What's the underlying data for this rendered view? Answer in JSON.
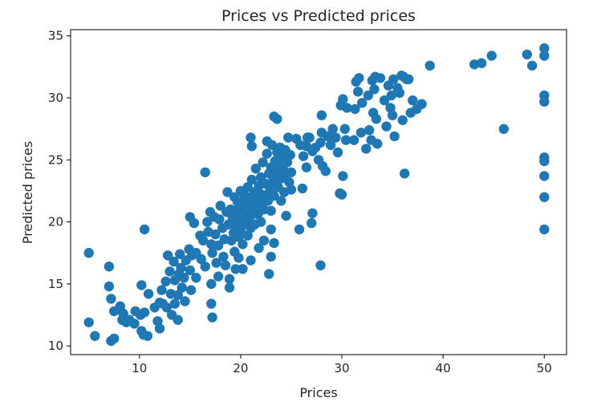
{
  "chart_data": {
    "type": "scatter",
    "title": "Prices vs Predicted prices",
    "xlabel": "Prices",
    "ylabel": "Predicted prices",
    "xlim": [
      3.2,
      52.2
    ],
    "ylim": [
      9.3,
      35.5
    ],
    "xticks": [
      10,
      20,
      30,
      40,
      50
    ],
    "yticks": [
      10,
      15,
      20,
      25,
      30,
      35
    ],
    "grid": false,
    "marker_color": "#1f77b4",
    "points": [
      [
        5.0,
        17.5
      ],
      [
        5.0,
        11.9
      ],
      [
        5.6,
        10.8
      ],
      [
        7.0,
        16.4
      ],
      [
        7.0,
        14.8
      ],
      [
        7.2,
        13.8
      ],
      [
        7.2,
        10.4
      ],
      [
        7.5,
        10.6
      ],
      [
        7.5,
        12.8
      ],
      [
        8.1,
        13.2
      ],
      [
        8.3,
        12.1
      ],
      [
        8.4,
        12.6
      ],
      [
        8.7,
        11.9
      ],
      [
        9.0,
        12.1
      ],
      [
        9.5,
        11.8
      ],
      [
        9.6,
        12.8
      ],
      [
        10.1,
        12.5
      ],
      [
        10.2,
        11.2
      ],
      [
        10.4,
        10.9
      ],
      [
        10.5,
        12.7
      ],
      [
        10.8,
        10.8
      ],
      [
        10.2,
        14.9
      ],
      [
        10.9,
        14.2
      ],
      [
        10.5,
        19.4
      ],
      [
        11.5,
        13.1
      ],
      [
        11.8,
        12.0
      ],
      [
        12.0,
        13.5
      ],
      [
        12.2,
        14.5
      ],
      [
        12.0,
        11.4
      ],
      [
        12.3,
        13.4
      ],
      [
        12.6,
        15.2
      ],
      [
        12.7,
        13.1
      ],
      [
        12.8,
        17.3
      ],
      [
        13.0,
        16.0
      ],
      [
        13.1,
        14.2
      ],
      [
        13.2,
        12.5
      ],
      [
        13.4,
        16.8
      ],
      [
        13.5,
        15.3
      ],
      [
        13.5,
        13.4
      ],
      [
        13.8,
        14.1
      ],
      [
        13.8,
        12.1
      ],
      [
        13.9,
        15.8
      ],
      [
        14.0,
        17.4
      ],
      [
        14.1,
        16.3
      ],
      [
        14.2,
        14.7
      ],
      [
        14.4,
        15.5
      ],
      [
        14.5,
        13.6
      ],
      [
        14.6,
        16.9
      ],
      [
        14.9,
        17.8
      ],
      [
        15.0,
        16.1
      ],
      [
        15.1,
        14.5
      ],
      [
        15.2,
        17.3
      ],
      [
        15.0,
        20.4
      ],
      [
        15.4,
        19.9
      ],
      [
        15.6,
        17.5
      ],
      [
        15.6,
        15.5
      ],
      [
        16.0,
        18.9
      ],
      [
        16.1,
        17.0
      ],
      [
        16.3,
        18.5
      ],
      [
        16.5,
        16.4
      ],
      [
        16.5,
        24.0
      ],
      [
        16.7,
        20.0
      ],
      [
        16.8,
        19.2
      ],
      [
        17.0,
        20.8
      ],
      [
        17.1,
        18.2
      ],
      [
        17.2,
        17.5
      ],
      [
        17.1,
        15.0
      ],
      [
        17.1,
        13.4
      ],
      [
        17.2,
        12.3
      ],
      [
        17.4,
        20.4
      ],
      [
        17.5,
        19.0
      ],
      [
        17.6,
        16.7
      ],
      [
        17.8,
        18.1
      ],
      [
        17.8,
        15.6
      ],
      [
        17.9,
        20.2
      ],
      [
        18.0,
        21.3
      ],
      [
        18.2,
        19.5
      ],
      [
        18.3,
        17.2
      ],
      [
        18.4,
        18.6
      ],
      [
        18.5,
        16.5
      ],
      [
        18.6,
        20.8
      ],
      [
        18.7,
        22.4
      ],
      [
        18.8,
        19.8
      ],
      [
        18.9,
        14.7
      ],
      [
        18.9,
        15.4
      ],
      [
        19.0,
        21.0
      ],
      [
        19.1,
        18.5
      ],
      [
        19.2,
        20.4
      ],
      [
        19.3,
        19.1
      ],
      [
        19.4,
        22.0
      ],
      [
        19.4,
        17.6
      ],
      [
        19.5,
        16.2
      ],
      [
        19.6,
        20.9
      ],
      [
        19.6,
        19.7
      ],
      [
        19.7,
        21.6
      ],
      [
        19.8,
        18.8
      ],
      [
        19.9,
        20.2
      ],
      [
        20.0,
        22.5
      ],
      [
        20.0,
        19.4
      ],
      [
        20.1,
        21.2
      ],
      [
        20.2,
        18.2
      ],
      [
        20.3,
        20.6
      ],
      [
        20.4,
        22.1
      ],
      [
        20.4,
        19.9
      ],
      [
        20.5,
        21.5
      ],
      [
        20.6,
        20.1
      ],
      [
        20.7,
        22.8
      ],
      [
        20.7,
        18.9
      ],
      [
        20.8,
        21.0
      ],
      [
        20.9,
        20.4
      ],
      [
        21.0,
        22.0
      ],
      [
        21.0,
        19.5
      ],
      [
        21.1,
        23.4
      ],
      [
        21.2,
        21.3
      ],
      [
        21.3,
        20.8
      ],
      [
        21.4,
        22.4
      ],
      [
        21.4,
        19.8
      ],
      [
        21.5,
        24.3
      ],
      [
        21.6,
        21.9
      ],
      [
        21.7,
        20.6
      ],
      [
        21.8,
        22.9
      ],
      [
        21.9,
        21.4
      ],
      [
        22.0,
        23.6
      ],
      [
        22.0,
        20.0
      ],
      [
        22.1,
        22.2
      ],
      [
        22.2,
        24.8
      ],
      [
        22.3,
        21.0
      ],
      [
        22.4,
        23.1
      ],
      [
        22.5,
        22.0
      ],
      [
        22.6,
        25.5
      ],
      [
        22.7,
        21.7
      ],
      [
        22.8,
        23.9
      ],
      [
        22.9,
        22.6
      ],
      [
        23.0,
        24.4
      ],
      [
        23.0,
        20.9
      ],
      [
        23.1,
        26.2
      ],
      [
        23.2,
        23.3
      ],
      [
        23.3,
        22.1
      ],
      [
        23.4,
        24.9
      ],
      [
        23.5,
        23.7
      ],
      [
        23.6,
        25.6
      ],
      [
        23.7,
        22.8
      ],
      [
        23.8,
        24.2
      ],
      [
        23.9,
        26.0
      ],
      [
        24.0,
        23.5
      ],
      [
        24.1,
        25.1
      ],
      [
        24.2,
        24.6
      ],
      [
        24.3,
        22.4
      ],
      [
        24.4,
        25.8
      ],
      [
        24.5,
        23.9
      ],
      [
        24.6,
        24.8
      ],
      [
        24.7,
        26.8
      ],
      [
        24.8,
        23.2
      ],
      [
        24.9,
        25.4
      ],
      [
        25.0,
        24.0
      ],
      [
        25.0,
        22.6
      ],
      [
        21.8,
        17.9
      ],
      [
        21.0,
        16.9
      ],
      [
        20.2,
        16.2
      ],
      [
        19.8,
        17.1
      ],
      [
        22.3,
        18.5
      ],
      [
        23.0,
        17.2
      ],
      [
        22.8,
        15.8
      ],
      [
        23.3,
        18.3
      ],
      [
        23.0,
        19.4
      ],
      [
        21.0,
        26.8
      ],
      [
        21.1,
        26.1
      ],
      [
        22.6,
        26.5
      ],
      [
        23.3,
        28.5
      ],
      [
        23.6,
        28.3
      ],
      [
        24.3,
        24.1
      ],
      [
        24.0,
        21.7
      ],
      [
        24.5,
        20.5
      ],
      [
        25.8,
        19.4
      ],
      [
        26.1,
        22.7
      ],
      [
        25.5,
        26.7
      ],
      [
        25.9,
        26.2
      ],
      [
        26.2,
        25.3
      ],
      [
        26.5,
        24.4
      ],
      [
        26.8,
        26.8
      ],
      [
        27.1,
        25.7
      ],
      [
        27.4,
        26.0
      ],
      [
        27.7,
        25.0
      ],
      [
        27.9,
        26.4
      ],
      [
        28.0,
        27.2
      ],
      [
        28.1,
        24.5
      ],
      [
        28.4,
        24.1
      ],
      [
        28.6,
        26.9
      ],
      [
        28.9,
        26.2
      ],
      [
        29.1,
        27.5
      ],
      [
        29.4,
        26.8
      ],
      [
        29.6,
        25.6
      ],
      [
        29.8,
        22.3
      ],
      [
        30.0,
        22.2
      ],
      [
        30.1,
        23.7
      ],
      [
        29.9,
        29.4
      ],
      [
        30.1,
        29.9
      ],
      [
        30.3,
        27.5
      ],
      [
        30.4,
        26.6
      ],
      [
        30.5,
        29.2
      ],
      [
        27.1,
        20.7
      ],
      [
        27.0,
        19.9
      ],
      [
        27.9,
        16.5
      ],
      [
        28.0,
        28.6
      ],
      [
        26.5,
        26.1
      ],
      [
        26.6,
        26.8
      ],
      [
        31.2,
        26.6
      ],
      [
        31.3,
        29.1
      ],
      [
        31.4,
        31.3
      ],
      [
        31.6,
        30.5
      ],
      [
        31.7,
        31.6
      ],
      [
        31.9,
        27.2
      ],
      [
        32.0,
        29.6
      ],
      [
        32.4,
        25.9
      ],
      [
        32.6,
        30.2
      ],
      [
        32.7,
        27.4
      ],
      [
        32.9,
        26.6
      ],
      [
        33.0,
        31.4
      ],
      [
        33.1,
        28.8
      ],
      [
        33.2,
        30.7
      ],
      [
        33.3,
        31.7
      ],
      [
        33.4,
        28.3
      ],
      [
        33.5,
        26.3
      ],
      [
        33.8,
        31.6
      ],
      [
        34.2,
        29.8
      ],
      [
        34.4,
        27.7
      ],
      [
        34.6,
        31.0
      ],
      [
        34.8,
        29.2
      ],
      [
        34.9,
        30.2
      ],
      [
        35.0,
        28.6
      ],
      [
        35.1,
        31.5
      ],
      [
        35.2,
        26.9
      ],
      [
        35.5,
        30.8
      ],
      [
        35.7,
        30.4
      ],
      [
        35.9,
        31.8
      ],
      [
        36.0,
        28.2
      ],
      [
        36.1,
        31.7
      ],
      [
        36.2,
        23.9
      ],
      [
        36.4,
        31.5
      ],
      [
        36.6,
        31.5
      ],
      [
        36.8,
        28.8
      ],
      [
        37.0,
        29.8
      ],
      [
        37.4,
        29.1
      ],
      [
        37.9,
        29.5
      ],
      [
        38.7,
        32.6
      ],
      [
        43.1,
        32.7
      ],
      [
        43.8,
        32.8
      ],
      [
        44.8,
        33.4
      ],
      [
        46.0,
        27.5
      ],
      [
        48.3,
        33.5
      ],
      [
        48.8,
        32.6
      ],
      [
        50.0,
        34.0
      ],
      [
        50.0,
        33.4
      ],
      [
        50.0,
        30.2
      ],
      [
        50.0,
        29.7
      ],
      [
        50.0,
        25.2
      ],
      [
        50.0,
        24.9
      ],
      [
        50.0,
        23.7
      ],
      [
        50.0,
        22.0
      ],
      [
        50.0,
        19.4
      ]
    ]
  }
}
